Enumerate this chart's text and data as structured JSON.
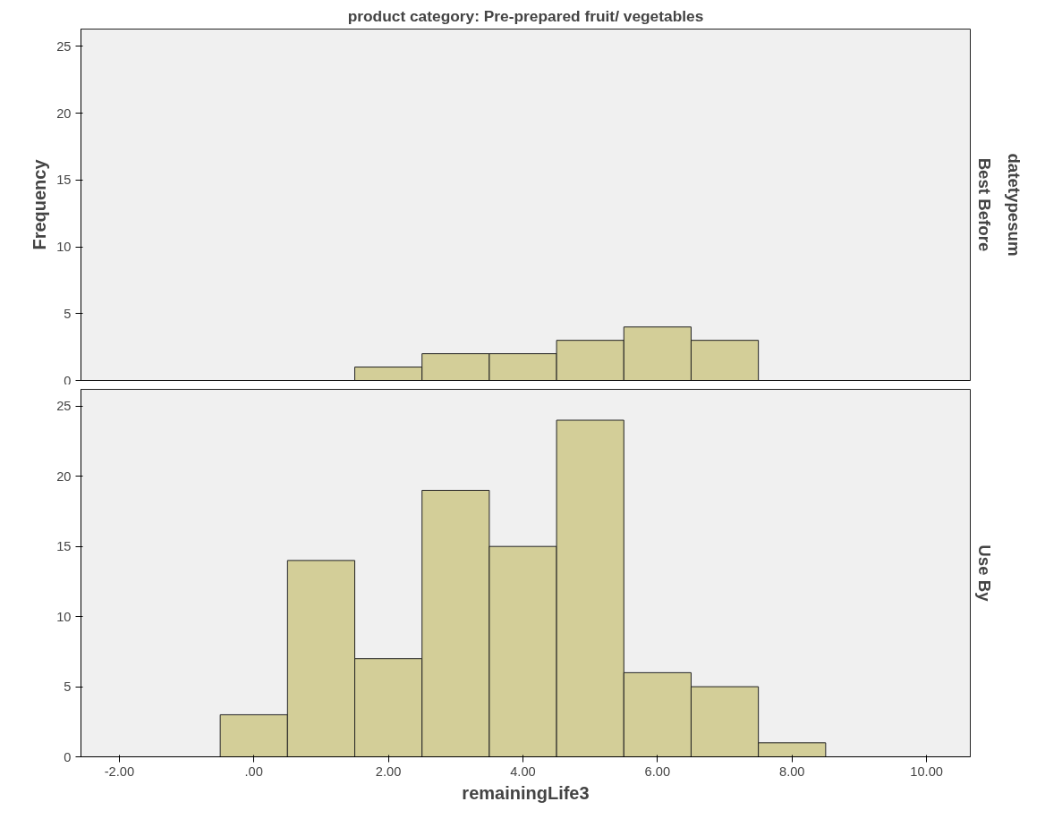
{
  "chart_data": [
    {
      "type": "histogram",
      "title": "product category: Pre-prepared fruit/ vegetables",
      "ylabel": "Frequency",
      "annotations": [
        "Best Before",
        "datetypesum"
      ],
      "bins": [
        1.5,
        2.5,
        3.5,
        4.5,
        5.5,
        6.5,
        7.5
      ],
      "values": [
        1,
        2,
        2,
        3,
        4,
        3
      ],
      "color": "#d3ce98",
      "xlim": [
        -2.57,
        10.65
      ],
      "ylim": [
        0,
        26.3
      ],
      "yticks": [
        0,
        5,
        10,
        15,
        20,
        25
      ],
      "tick_labels": "y",
      "grid": false
    },
    {
      "type": "histogram",
      "xlabel": "remainingLife3",
      "annotations": [
        "Use By"
      ],
      "bins": [
        -0.5,
        0.5,
        1.5,
        2.5,
        3.5,
        4.5,
        5.5,
        6.5,
        7.5,
        8.5
      ],
      "values": [
        3,
        14,
        7,
        19,
        15,
        24,
        6,
        5,
        1
      ],
      "color": "#d3ce98",
      "xlim": [
        -2.57,
        10.65
      ],
      "xticks": [
        {
          "value": -2,
          "label": "-2.00"
        },
        {
          "value": 0,
          "label": ".00"
        },
        {
          "value": 2,
          "label": "2.00"
        },
        {
          "value": 4,
          "label": "4.00"
        },
        {
          "value": 6,
          "label": "6.00"
        },
        {
          "value": 8,
          "label": "8.00"
        },
        {
          "value": 10,
          "label": "10.00"
        }
      ],
      "ylim": [
        0,
        26.2
      ],
      "yticks": [
        0,
        5,
        10,
        15,
        20,
        25
      ],
      "grid": false
    }
  ]
}
